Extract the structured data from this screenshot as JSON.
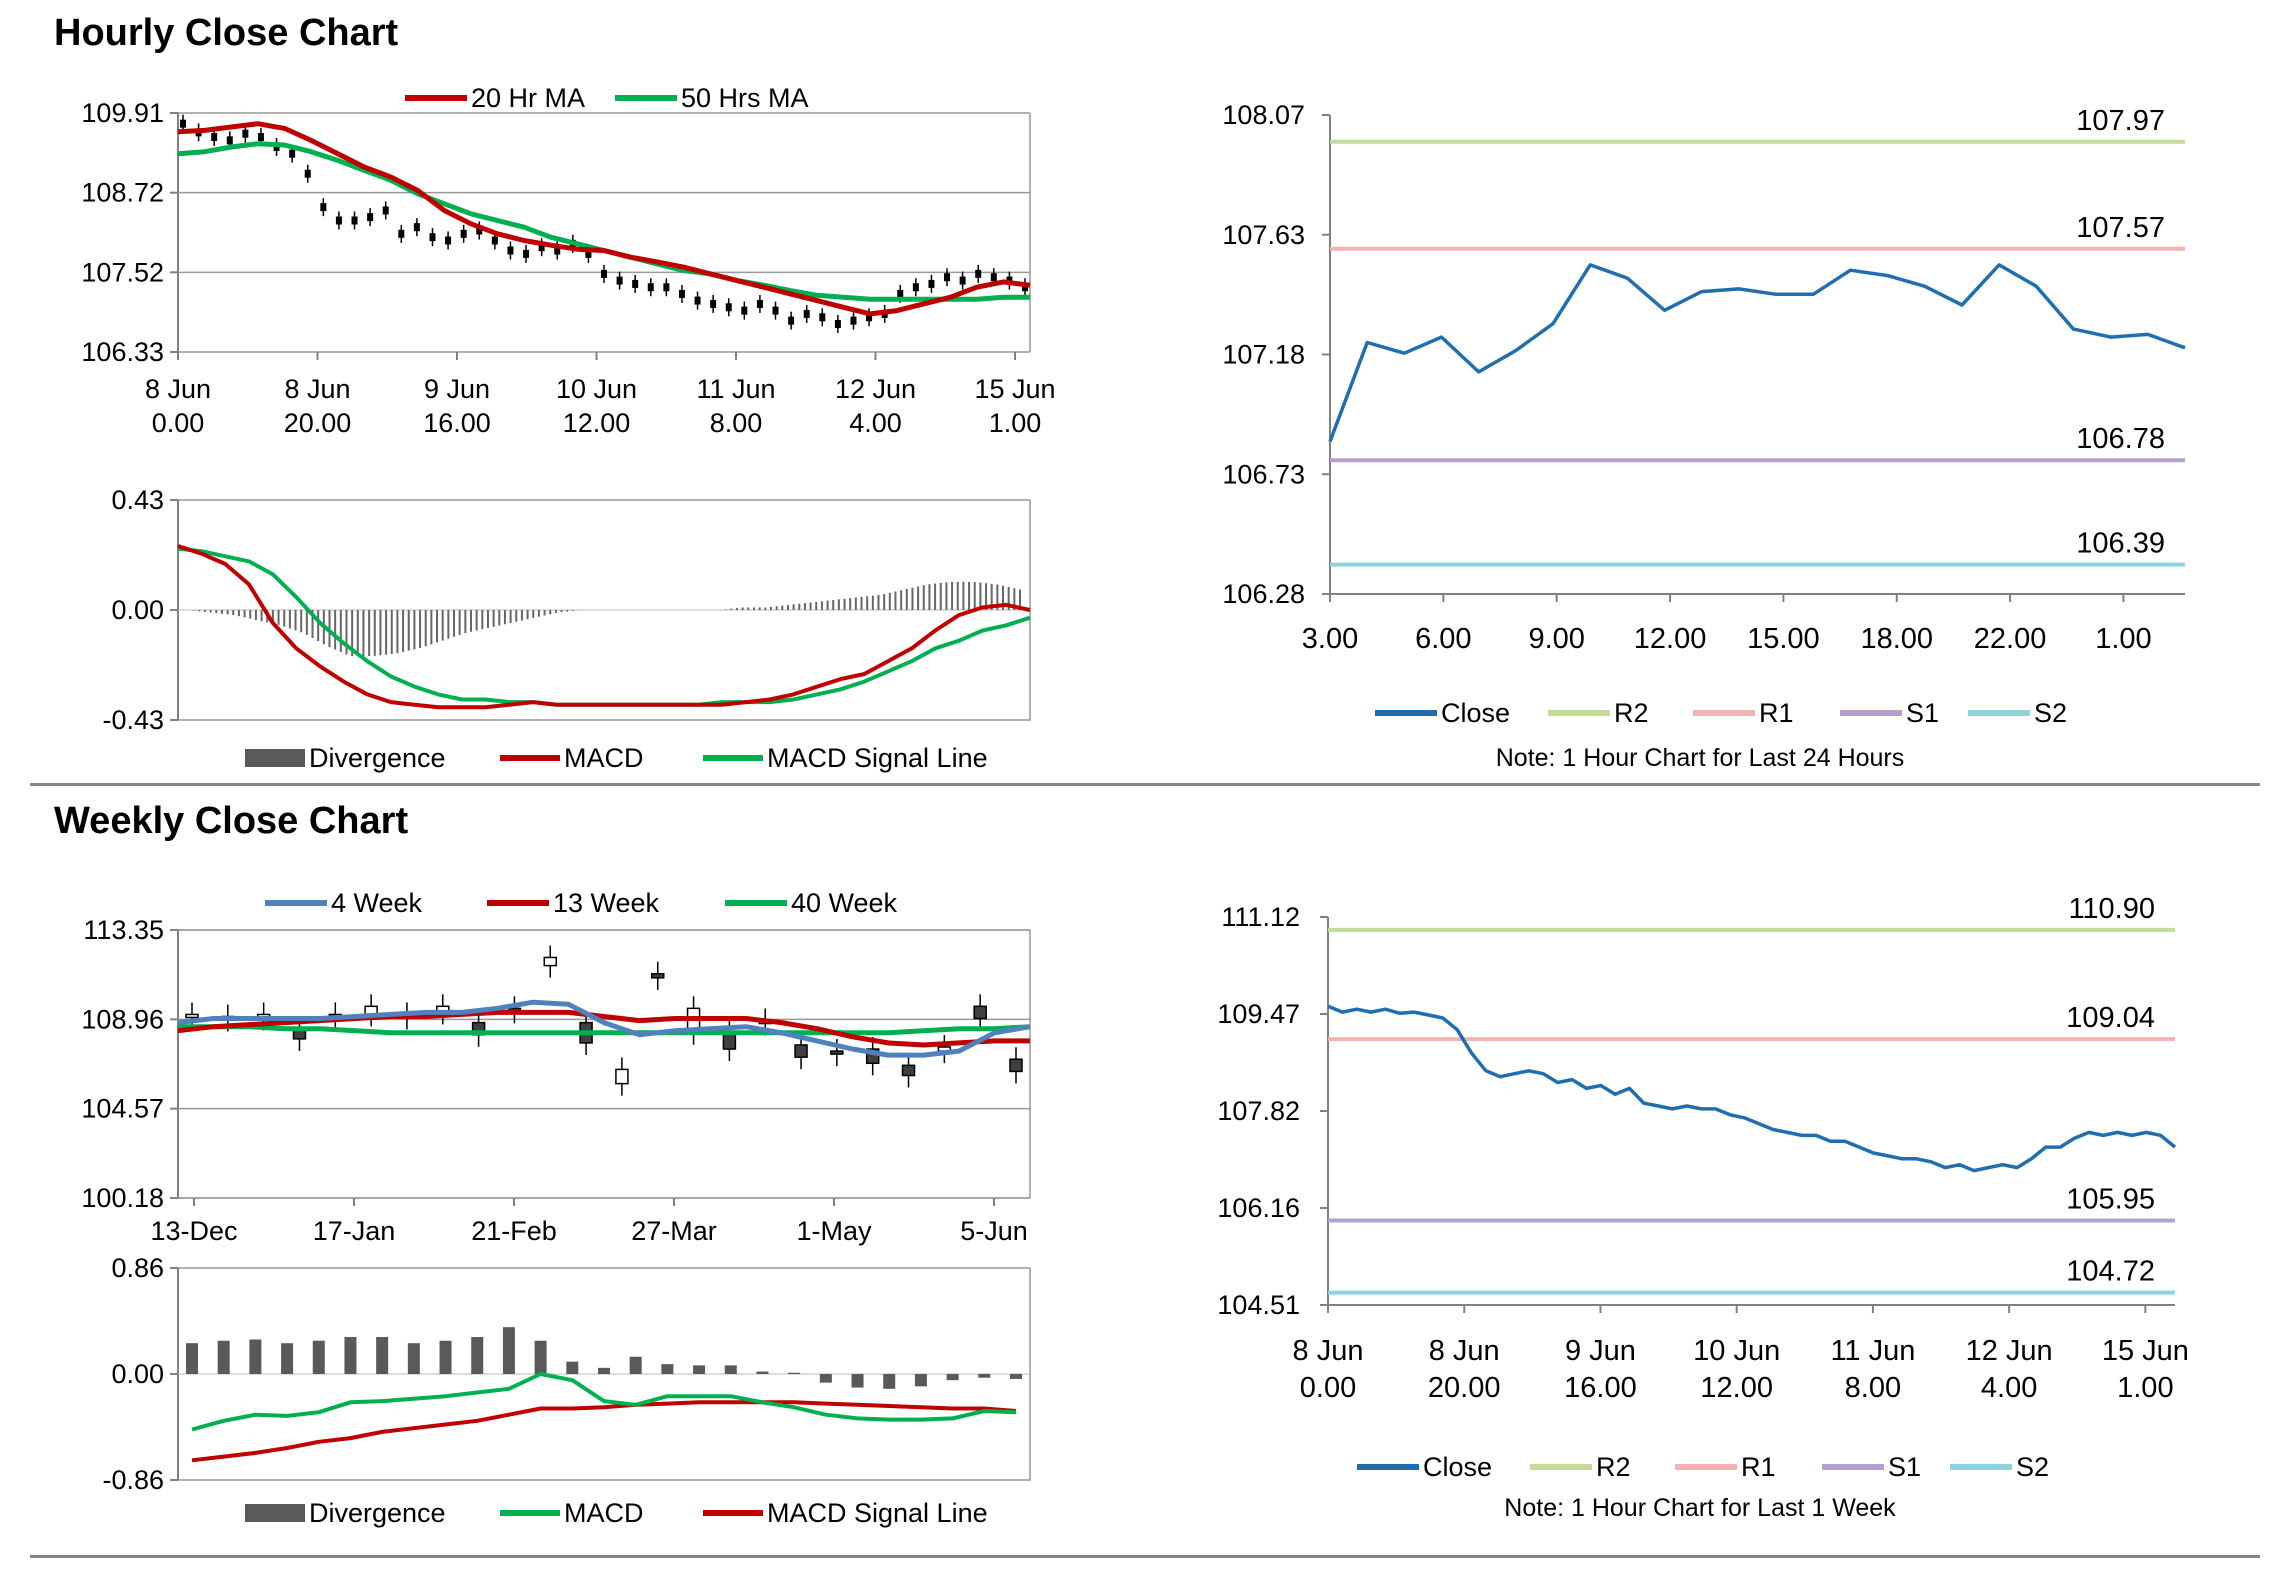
{
  "sections": {
    "hourly_title": "Hourly Close Chart",
    "weekly_title": "Weekly Close Chart"
  },
  "colors": {
    "ma20": "#c00000",
    "ma50": "#00b050",
    "macd_red": "#c00000",
    "signal_green": "#00b050",
    "close_blue": "#1f6eb0",
    "r2": "#c3dc9c",
    "r1": "#f0b4b4",
    "s1": "#b4a0cc",
    "s2": "#8fd3dc",
    "w4": "#4f81bd",
    "w13": "#c00000",
    "w40": "#00b050",
    "divergence": "#595959",
    "grid": "#999999"
  },
  "chart_data": [
    {
      "id": "hourly_price",
      "type": "line",
      "title": "",
      "ylim": [
        106.33,
        109.91
      ],
      "yticks": [
        "109.91",
        "108.72",
        "107.52",
        "106.33"
      ],
      "xticks": [
        [
          "8 Jun",
          "0.00"
        ],
        [
          "8 Jun",
          "20.00"
        ],
        [
          "9 Jun",
          "16.00"
        ],
        [
          "10 Jun",
          "12.00"
        ],
        [
          "11 Jun",
          "8.00"
        ],
        [
          "12 Jun",
          "4.00"
        ],
        [
          "15 Jun",
          "1.00"
        ]
      ],
      "legend": [
        "20 Hr MA",
        "50 Hrs MA"
      ],
      "close": [
        109.75,
        109.62,
        109.55,
        109.5,
        109.6,
        109.55,
        109.4,
        109.3,
        109.0,
        108.5,
        108.3,
        108.3,
        108.35,
        108.45,
        108.1,
        108.2,
        108.05,
        108.0,
        108.1,
        108.15,
        108.0,
        107.85,
        107.8,
        107.9,
        107.85,
        107.95,
        107.8,
        107.5,
        107.4,
        107.35,
        107.3,
        107.3,
        107.2,
        107.1,
        107.05,
        107.0,
        106.95,
        107.05,
        106.95,
        106.8,
        106.9,
        106.85,
        106.75,
        106.8,
        106.85,
        106.9,
        107.2,
        107.3,
        107.35,
        107.45,
        107.4,
        107.5,
        107.45,
        107.4,
        107.3
      ],
      "series": [
        {
          "name": "20 Hr MA",
          "values": [
            109.63,
            109.65,
            109.7,
            109.75,
            109.68,
            109.5,
            109.3,
            109.1,
            108.95,
            108.75,
            108.45,
            108.25,
            108.1,
            108.0,
            107.93,
            107.87,
            107.85,
            107.75,
            107.68,
            107.6,
            107.5,
            107.4,
            107.3,
            107.2,
            107.1,
            107.0,
            106.9,
            106.95,
            107.05,
            107.15,
            107.3,
            107.38,
            107.33
          ]
        },
        {
          "name": "50 Hrs MA",
          "values": [
            109.3,
            109.33,
            109.4,
            109.45,
            109.43,
            109.33,
            109.2,
            109.05,
            108.9,
            108.7,
            108.55,
            108.4,
            108.3,
            108.2,
            108.05,
            107.95,
            107.85,
            107.75,
            107.65,
            107.55,
            107.5,
            107.4,
            107.33,
            107.25,
            107.18,
            107.15,
            107.12,
            107.12,
            107.12,
            107.12,
            107.12,
            107.15,
            107.15
          ]
        }
      ]
    },
    {
      "id": "hourly_macd",
      "type": "line",
      "ylim": [
        -0.43,
        0.43
      ],
      "yticks": [
        "0.43",
        "0.00",
        "-0.43"
      ],
      "legend": [
        "Divergence",
        "MACD",
        "MACD Signal Line"
      ],
      "series": [
        {
          "name": "MACD",
          "values": [
            0.25,
            0.22,
            0.18,
            0.1,
            -0.05,
            -0.15,
            -0.22,
            -0.28,
            -0.33,
            -0.36,
            -0.37,
            -0.38,
            -0.38,
            -0.38,
            -0.37,
            -0.36,
            -0.37,
            -0.37,
            -0.37,
            -0.37,
            -0.37,
            -0.37,
            -0.37,
            -0.37,
            -0.36,
            -0.35,
            -0.33,
            -0.3,
            -0.27,
            -0.25,
            -0.2,
            -0.15,
            -0.08,
            -0.02,
            0.01,
            0.02,
            0.0
          ]
        },
        {
          "name": "MACD Signal Line",
          "values": [
            0.24,
            0.23,
            0.21,
            0.19,
            0.14,
            0.05,
            -0.05,
            -0.13,
            -0.2,
            -0.26,
            -0.3,
            -0.33,
            -0.35,
            -0.35,
            -0.36,
            -0.36,
            -0.37,
            -0.37,
            -0.37,
            -0.37,
            -0.37,
            -0.37,
            -0.37,
            -0.36,
            -0.36,
            -0.36,
            -0.35,
            -0.33,
            -0.31,
            -0.28,
            -0.24,
            -0.2,
            -0.15,
            -0.12,
            -0.08,
            -0.06,
            -0.03
          ]
        },
        {
          "name": "Divergence",
          "values": [
            0.0,
            -0.01,
            -0.02,
            -0.04,
            -0.06,
            -0.09,
            -0.14,
            -0.18,
            -0.18,
            -0.17,
            -0.15,
            -0.12,
            -0.09,
            -0.07,
            -0.05,
            -0.03,
            -0.01,
            0.0,
            0.0,
            0.0,
            0.0,
            0.0,
            0.0,
            0.0,
            0.01,
            0.01,
            0.02,
            0.03,
            0.04,
            0.05,
            0.06,
            0.08,
            0.1,
            0.11,
            0.11,
            0.1,
            0.08
          ]
        }
      ]
    },
    {
      "id": "hourly_24h",
      "type": "line",
      "ylim": [
        106.28,
        108.07
      ],
      "yticks": [
        "108.07",
        "107.63",
        "107.18",
        "106.73",
        "106.28"
      ],
      "xticks": [
        "3.00",
        "6.00",
        "9.00",
        "12.00",
        "15.00",
        "18.00",
        "22.00",
        "1.00"
      ],
      "levels": [
        {
          "name": "R2",
          "value": 107.97,
          "label": "107.97"
        },
        {
          "name": "R1",
          "value": 107.57,
          "label": "107.57"
        },
        {
          "name": "S1",
          "value": 106.78,
          "label": "106.78"
        },
        {
          "name": "S2",
          "value": 106.39,
          "label": "106.39"
        }
      ],
      "legend": [
        "Close",
        "R2",
        "R1",
        "S1",
        "S2"
      ],
      "note": "Note: 1 Hour Chart for Last 24 Hours",
      "series": [
        {
          "name": "Close",
          "values": [
            106.85,
            107.22,
            107.18,
            107.24,
            107.11,
            107.19,
            107.29,
            107.51,
            107.46,
            107.34,
            107.41,
            107.42,
            107.4,
            107.4,
            107.49,
            107.47,
            107.43,
            107.36,
            107.51,
            107.43,
            107.27,
            107.24,
            107.25,
            107.2
          ]
        }
      ]
    },
    {
      "id": "weekly_price",
      "type": "line",
      "ylim": [
        100.18,
        113.35
      ],
      "yticks": [
        "113.35",
        "108.96",
        "104.57",
        "100.18"
      ],
      "xticks": [
        "13-Dec",
        "17-Jan",
        "21-Feb",
        "27-Mar",
        "1-May",
        "5-Jun"
      ],
      "legend": [
        "4 Week",
        "13 Week",
        "40 Week"
      ],
      "candles": [
        [
          109.2,
          109.2
        ],
        [
          109.1,
          109.1
        ],
        [
          109.0,
          109.2
        ],
        [
          108.5,
          108.0
        ],
        [
          109.2,
          109.1
        ],
        [
          109.2,
          109.6
        ],
        [
          109.1,
          109.2
        ],
        [
          109.3,
          109.6
        ],
        [
          108.8,
          108.2
        ],
        [
          109.5,
          109.4
        ],
        [
          111.6,
          112.0
        ],
        [
          108.8,
          107.8
        ],
        [
          105.8,
          106.5
        ],
        [
          111.2,
          111.0
        ],
        [
          108.3,
          109.5
        ],
        [
          108.3,
          107.5
        ],
        [
          108.8,
          108.9
        ],
        [
          107.7,
          107.1
        ],
        [
          107.4,
          107.3
        ],
        [
          107.5,
          106.8
        ],
        [
          106.7,
          106.2
        ],
        [
          107.4,
          107.6
        ],
        [
          109.6,
          109.0
        ],
        [
          107.0,
          106.4
        ]
      ],
      "series": [
        {
          "name": "4 Week",
          "values": [
            108.8,
            109.0,
            109.0,
            109.0,
            109.0,
            109.1,
            109.2,
            109.3,
            109.3,
            109.5,
            109.8,
            109.7,
            108.8,
            108.2,
            108.4,
            108.5,
            108.6,
            108.3,
            107.9,
            107.5,
            107.2,
            107.2,
            107.4,
            108.3,
            108.6
          ]
        },
        {
          "name": "13 Week",
          "values": [
            108.4,
            108.6,
            108.7,
            108.8,
            108.9,
            109.0,
            109.1,
            109.1,
            109.2,
            109.3,
            109.3,
            109.3,
            109.1,
            108.9,
            109.0,
            109.0,
            109.0,
            108.8,
            108.5,
            108.1,
            107.8,
            107.7,
            107.8,
            107.9,
            107.9
          ]
        },
        {
          "name": "40 Week",
          "values": [
            108.6,
            108.6,
            108.6,
            108.5,
            108.5,
            108.4,
            108.3,
            108.3,
            108.3,
            108.3,
            108.3,
            108.3,
            108.3,
            108.3,
            108.3,
            108.3,
            108.3,
            108.3,
            108.3,
            108.3,
            108.3,
            108.4,
            108.5,
            108.5,
            108.6
          ]
        }
      ]
    },
    {
      "id": "weekly_macd",
      "type": "bar",
      "ylim": [
        -0.86,
        0.86
      ],
      "yticks": [
        "0.86",
        "0.00",
        "-0.86"
      ],
      "legend": [
        "Divergence",
        "MACD",
        "MACD Signal Line"
      ],
      "series": [
        {
          "name": "Divergence",
          "values": [
            0.25,
            0.27,
            0.28,
            0.25,
            0.27,
            0.3,
            0.3,
            0.25,
            0.27,
            0.3,
            0.38,
            0.27,
            0.1,
            0.05,
            0.14,
            0.08,
            0.07,
            0.07,
            0.02,
            0.01,
            -0.07,
            -0.11,
            -0.12,
            -0.1,
            -0.05,
            -0.03,
            -0.04
          ]
        },
        {
          "name": "MACD",
          "values": [
            -0.45,
            -0.38,
            -0.33,
            -0.34,
            -0.31,
            -0.23,
            -0.22,
            -0.2,
            -0.18,
            -0.15,
            -0.12,
            0.0,
            -0.05,
            -0.22,
            -0.25,
            -0.18,
            -0.18,
            -0.18,
            -0.23,
            -0.27,
            -0.33,
            -0.36,
            -0.37,
            -0.37,
            -0.36,
            -0.3,
            -0.31
          ]
        },
        {
          "name": "MACD Signal Line",
          "values": [
            -0.7,
            -0.67,
            -0.64,
            -0.6,
            -0.55,
            -0.52,
            -0.47,
            -0.44,
            -0.41,
            -0.38,
            -0.33,
            -0.28,
            -0.28,
            -0.27,
            -0.25,
            -0.24,
            -0.23,
            -0.23,
            -0.23,
            -0.23,
            -0.24,
            -0.25,
            -0.26,
            -0.27,
            -0.28,
            -0.28,
            -0.3
          ]
        }
      ]
    },
    {
      "id": "weekly_1week",
      "type": "line",
      "ylim": [
        104.51,
        111.12
      ],
      "yticks": [
        "111.12",
        "109.47",
        "107.82",
        "106.16",
        "104.51"
      ],
      "xticks": [
        [
          "8 Jun",
          "0.00"
        ],
        [
          "8 Jun",
          "20.00"
        ],
        [
          "9 Jun",
          "16.00"
        ],
        [
          "10 Jun",
          "12.00"
        ],
        [
          "11 Jun",
          "8.00"
        ],
        [
          "12 Jun",
          "4.00"
        ],
        [
          "15 Jun",
          "1.00"
        ]
      ],
      "levels": [
        {
          "name": "R2",
          "value": 110.9,
          "label": "110.90"
        },
        {
          "name": "R1",
          "value": 109.04,
          "label": "109.04"
        },
        {
          "name": "S1",
          "value": 105.95,
          "label": "105.95"
        },
        {
          "name": "S2",
          "value": 104.72,
          "label": "104.72"
        }
      ],
      "legend": [
        "Close",
        "R2",
        "R1",
        "S1",
        "S2"
      ],
      "note": "Note: 1 Hour Chart for Last 1 Week",
      "series": [
        {
          "name": "Close",
          "values": [
            109.6,
            109.5,
            109.55,
            109.5,
            109.55,
            109.48,
            109.5,
            109.45,
            109.4,
            109.2,
            108.8,
            108.5,
            108.4,
            108.45,
            108.5,
            108.45,
            108.3,
            108.35,
            108.2,
            108.25,
            108.1,
            108.2,
            107.95,
            107.9,
            107.85,
            107.9,
            107.85,
            107.85,
            107.75,
            107.7,
            107.6,
            107.5,
            107.45,
            107.4,
            107.4,
            107.3,
            107.3,
            107.2,
            107.1,
            107.05,
            107.0,
            107.0,
            106.95,
            106.85,
            106.9,
            106.8,
            106.85,
            106.9,
            106.85,
            107.0,
            107.2,
            107.2,
            107.35,
            107.45,
            107.4,
            107.45,
            107.4,
            107.45,
            107.4,
            107.2
          ]
        }
      ]
    }
  ]
}
